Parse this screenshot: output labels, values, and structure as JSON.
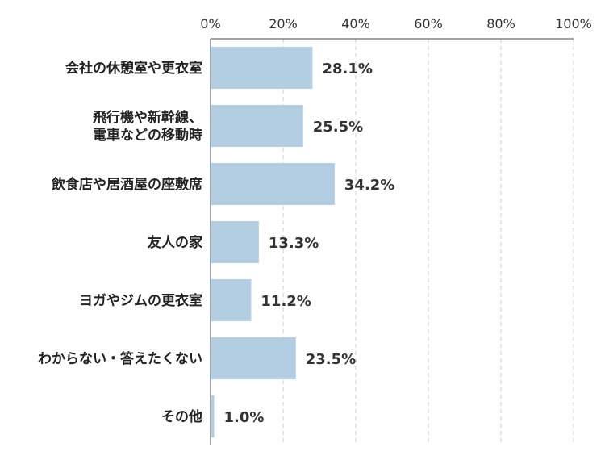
{
  "chart_data": {
    "type": "bar",
    "orientation": "horizontal",
    "categories": [
      "会社の休憩室や更衣室",
      "飛行機や新幹線、\n電車などの移動時",
      "飲食店や居酒屋の座敷席",
      "友人の家",
      "ヨガやジムの更衣室",
      "わからない・答えたくない",
      "その他"
    ],
    "values": [
      28.1,
      25.5,
      34.2,
      13.3,
      11.2,
      23.5,
      1.0
    ],
    "value_labels": [
      "28.1%",
      "25.5%",
      "34.2%",
      "13.3%",
      "11.2%",
      "23.5%",
      "1.0%"
    ],
    "title": "",
    "xlabel": "",
    "ylabel": "",
    "xlim": [
      0,
      100
    ],
    "x_ticks": [
      0,
      20,
      40,
      60,
      80,
      100
    ],
    "x_tick_labels": [
      "0%",
      "20%",
      "40%",
      "60%",
      "80%",
      "100%"
    ],
    "x_axis_position": "top",
    "grid": true,
    "bar_color": "#b3cde3"
  }
}
